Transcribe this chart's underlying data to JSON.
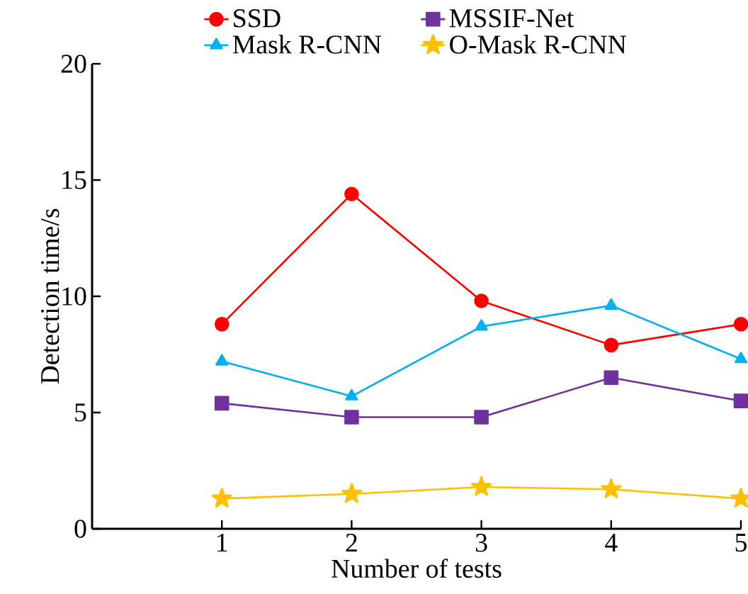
{
  "chart_data": {
    "type": "line",
    "xlabel": "Number of tests",
    "ylabel": "Detection time/s",
    "x": [
      1,
      2,
      3,
      4,
      5
    ],
    "xlim": [
      0,
      5
    ],
    "xticks": [
      1,
      2,
      3,
      4,
      5
    ],
    "ylim": [
      0,
      20
    ],
    "yticks": [
      0,
      5,
      10,
      15,
      20
    ],
    "legend": "top",
    "grid": false,
    "line_style": "solid",
    "series": [
      {
        "name": "SSD",
        "color": "#ff0000",
        "marker": "circle",
        "values": [
          8.8,
          14.4,
          9.8,
          7.9,
          8.8
        ]
      },
      {
        "name": "MSSIF-Net",
        "color": "#7030a0",
        "marker": "square",
        "values": [
          5.4,
          4.8,
          4.8,
          6.5,
          5.5
        ]
      },
      {
        "name": "Mask R-CNN",
        "color": "#00b0f0",
        "marker": "triangle",
        "values": [
          7.2,
          5.7,
          8.7,
          9.6,
          7.3
        ]
      },
      {
        "name": "O-Mask R-CNN",
        "color": "#ffc000",
        "marker": "star",
        "values": [
          1.3,
          1.5,
          1.8,
          1.7,
          1.3
        ]
      }
    ]
  }
}
